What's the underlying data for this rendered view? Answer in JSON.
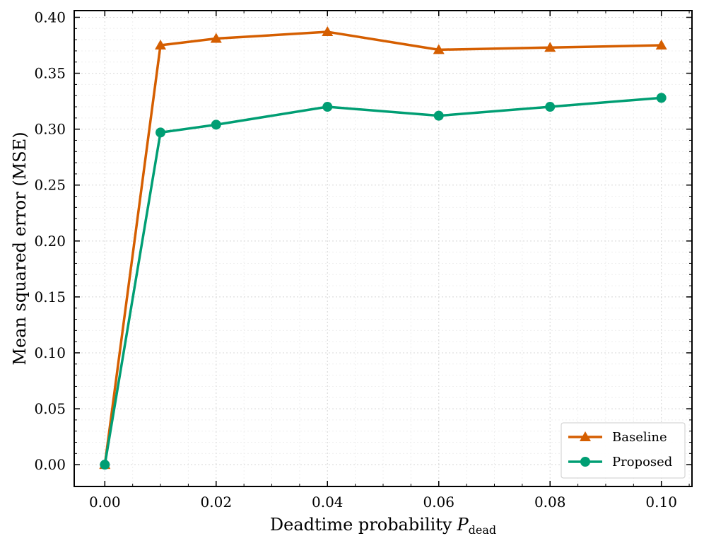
{
  "chart_data": {
    "type": "line",
    "title": "",
    "xlabel": "Deadtime probability",
    "xlabel_symbol": "P",
    "xlabel_subscript": "dead",
    "ylabel": "Mean squared error (MSE)",
    "x": [
      0.0,
      0.01,
      0.02,
      0.04,
      0.06,
      0.08,
      0.1
    ],
    "xlim": [
      -0.0055,
      0.1055
    ],
    "ylim": [
      -0.0195,
      0.406
    ],
    "xticks": [
      0.0,
      0.02,
      0.04,
      0.06,
      0.08,
      0.1
    ],
    "xtick_labels": [
      "0.00",
      "0.02",
      "0.04",
      "0.06",
      "0.08",
      "0.10"
    ],
    "yticks": [
      0.0,
      0.05,
      0.1,
      0.15,
      0.2,
      0.25,
      0.3,
      0.35,
      0.4
    ],
    "ytick_labels": [
      "0.00",
      "0.05",
      "0.10",
      "0.15",
      "0.20",
      "0.25",
      "0.30",
      "0.35",
      "0.40"
    ],
    "grid": true,
    "legend_position": "bottom-right",
    "series": [
      {
        "name": "Baseline",
        "marker": "triangle",
        "color": "#d55e00",
        "values": [
          0.0,
          0.375,
          0.381,
          0.387,
          0.371,
          0.373,
          0.375
        ]
      },
      {
        "name": "Proposed",
        "marker": "circle",
        "color": "#009e73",
        "values": [
          0.0,
          0.297,
          0.304,
          0.32,
          0.312,
          0.32,
          0.328
        ]
      }
    ]
  }
}
